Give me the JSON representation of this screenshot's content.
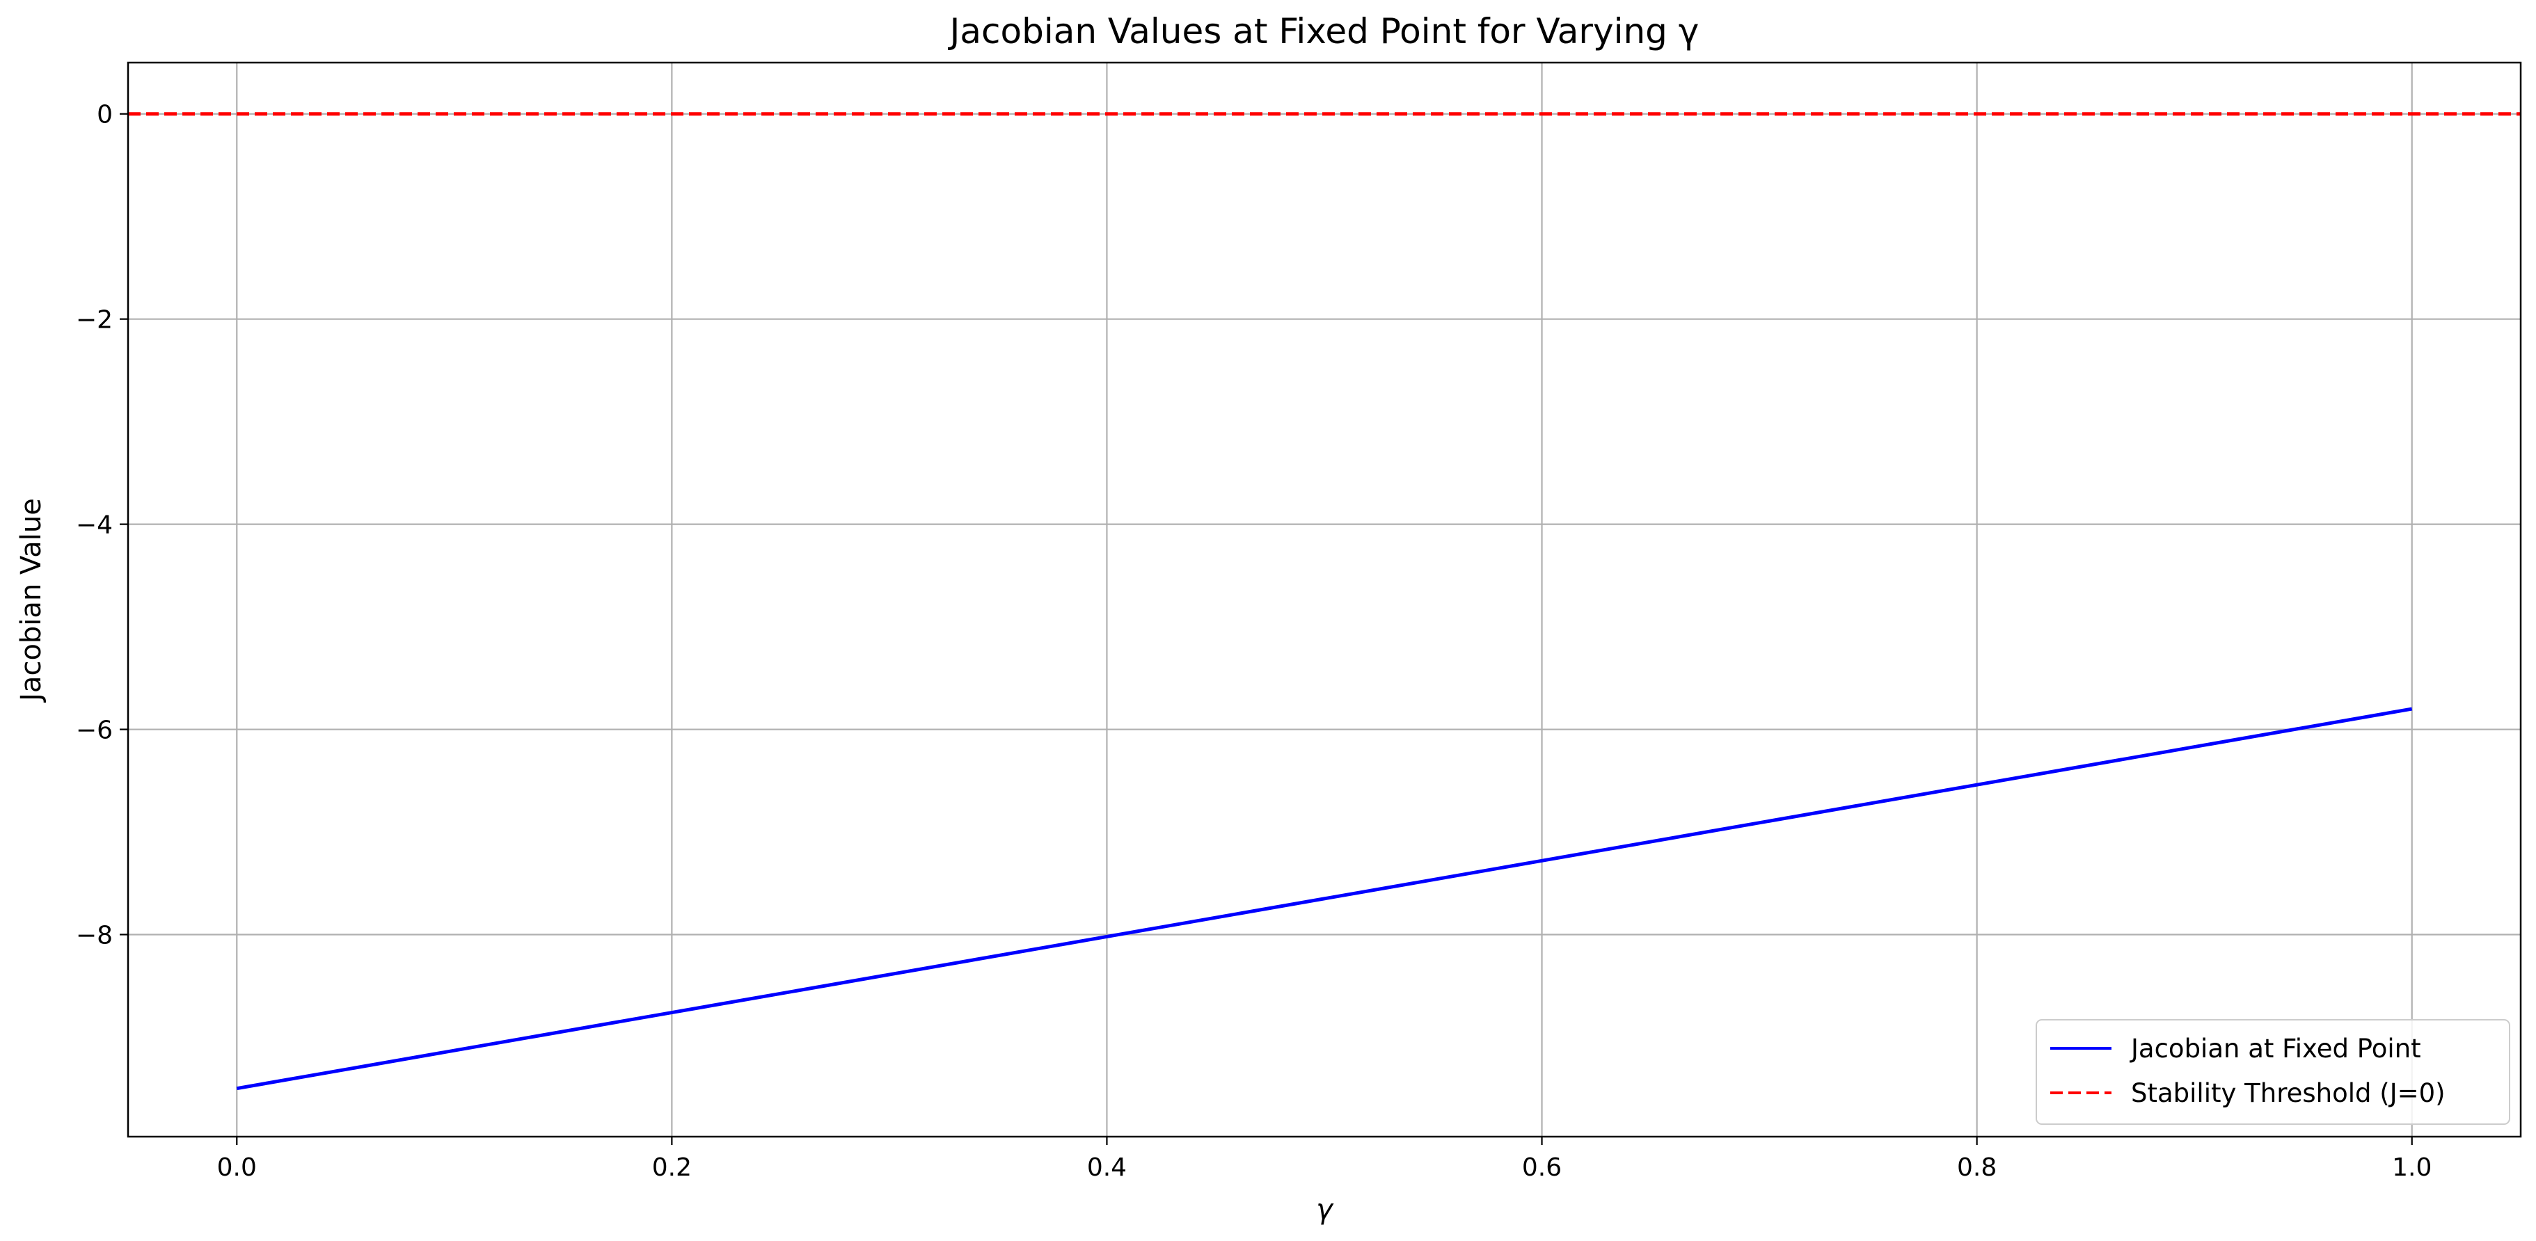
{
  "chart_data": {
    "type": "line",
    "title": "Jacobian Values at Fixed Point for Varying γ",
    "xlabel": "γ",
    "ylabel": "Jacobian Value",
    "xlim": [
      -0.05,
      1.05
    ],
    "ylim": [
      -9.97,
      0.5
    ],
    "x_ticks": [
      0.0,
      0.2,
      0.4,
      0.6,
      0.8,
      1.0
    ],
    "x_tick_labels": [
      "0.0",
      "0.2",
      "0.4",
      "0.6",
      "0.8",
      "1.0"
    ],
    "y_ticks": [
      0,
      -2,
      -4,
      -6,
      -8
    ],
    "y_tick_labels": [
      "0",
      "−2",
      "−4",
      "−6",
      "−8"
    ],
    "grid": true,
    "legend_position": "lower-right",
    "series": [
      {
        "name": "Jacobian at Fixed Point",
        "style": "solid",
        "color": "#0000ff",
        "x": [
          0.0,
          0.2,
          0.4,
          0.6,
          0.8,
          1.0
        ],
        "y": [
          -9.5,
          -8.76,
          -8.02,
          -7.28,
          -6.54,
          -5.8
        ]
      },
      {
        "name": "Stability Threshold (J=0)",
        "style": "dashed",
        "color": "#ff0000",
        "x": [
          -0.05,
          1.05
        ],
        "y": [
          0,
          0
        ]
      }
    ]
  }
}
